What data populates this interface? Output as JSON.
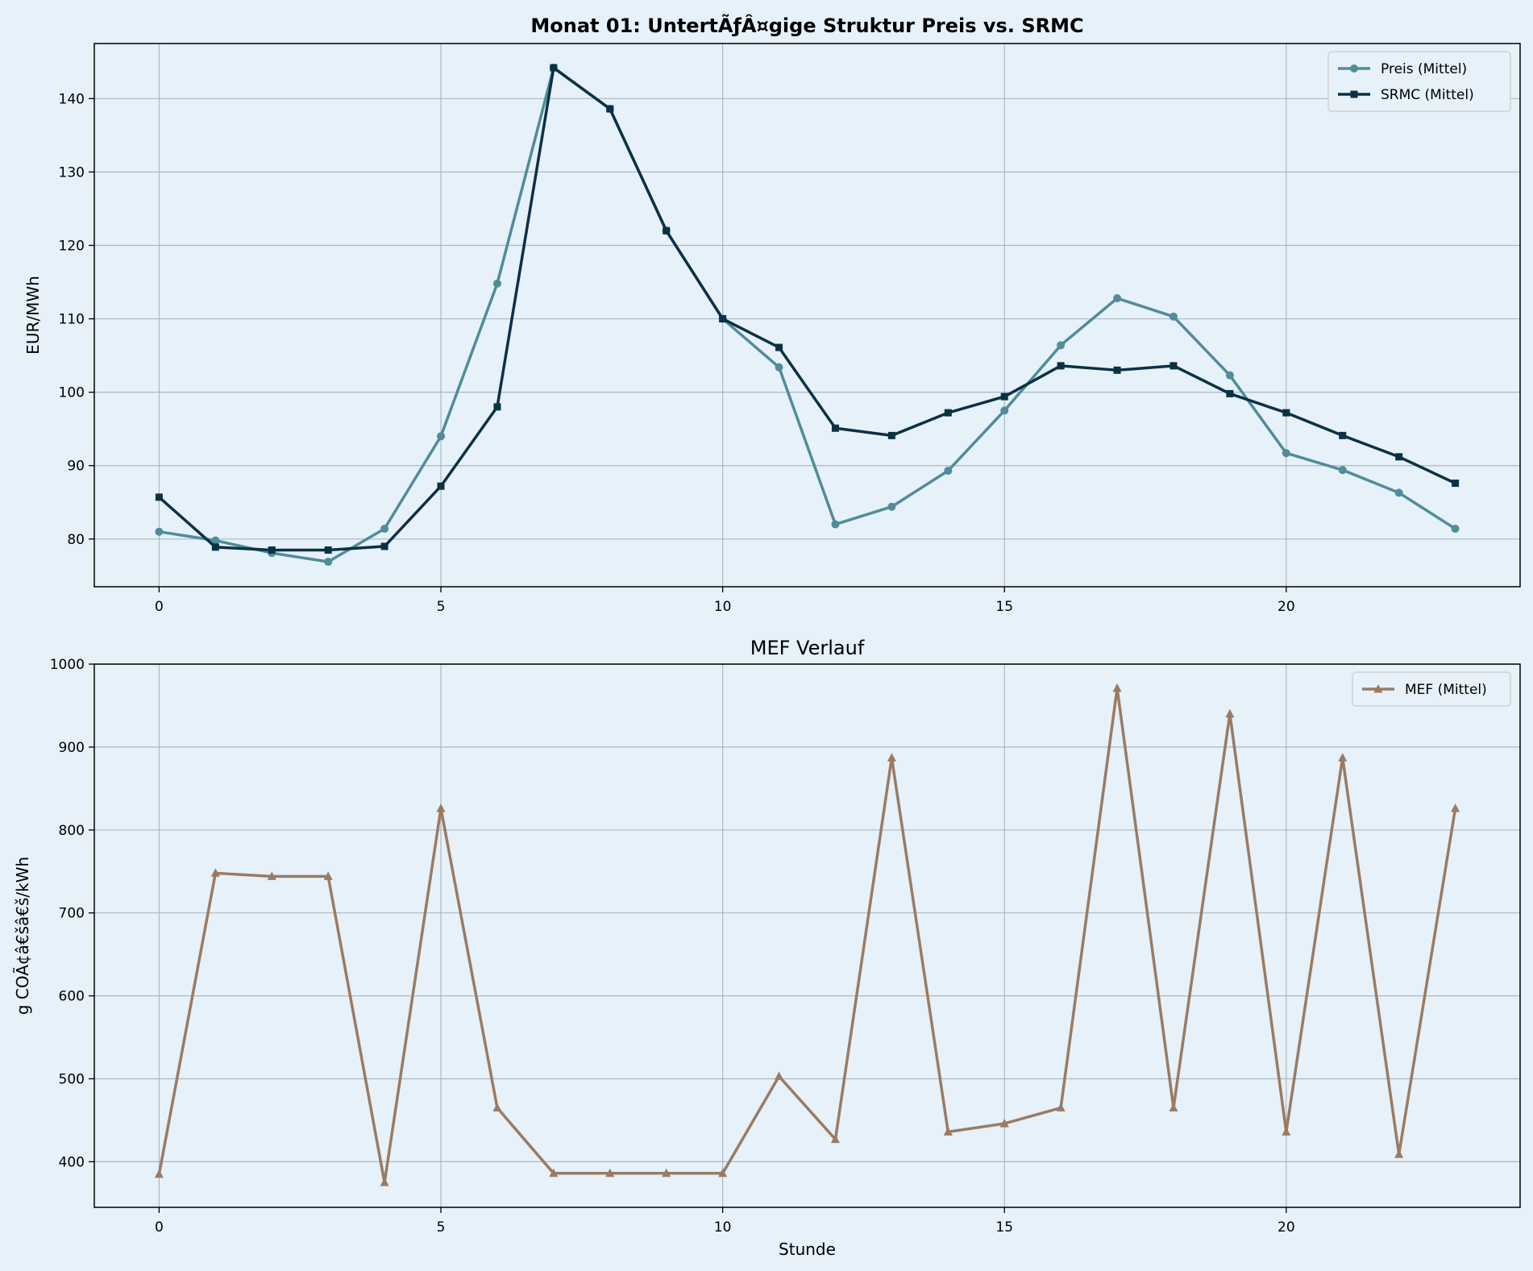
{
  "chart_data": [
    {
      "type": "line",
      "title": "Monat 01: UntertÃƒÂ¤gige Struktur Preis vs. SRMC",
      "title_bold": true,
      "xlabel": "",
      "ylabel": "EUR/MWh",
      "x": [
        0,
        1,
        2,
        3,
        4,
        5,
        6,
        7,
        8,
        9,
        10,
        11,
        12,
        13,
        14,
        15,
        16,
        17,
        18,
        19,
        20,
        21,
        22,
        23
      ],
      "xlim": [
        -1.15,
        24.15
      ],
      "ylim": [
        73.5,
        147.5
      ],
      "xticks": [
        0,
        5,
        10,
        15,
        20
      ],
      "xtick_labels": [
        "0",
        "5",
        "10",
        "15",
        "20"
      ],
      "yticks": [
        80,
        90,
        100,
        110,
        120,
        130,
        140
      ],
      "ytick_labels": [
        "80",
        "90",
        "100",
        "110",
        "120",
        "130",
        "140"
      ],
      "grid": true,
      "legend_position": "top-right",
      "series": [
        {
          "name": "Preis (Mittel)",
          "color": "#508c9b",
          "marker": "circle",
          "values": [
            81.0,
            79.8,
            78.1,
            76.9,
            81.4,
            94.0,
            114.8,
            144.2,
            138.6,
            122.0,
            110.0,
            103.4,
            82.0,
            84.4,
            89.3,
            97.5,
            106.4,
            112.8,
            110.3,
            102.3,
            91.7,
            89.4,
            86.3,
            81.4
          ]
        },
        {
          "name": "SRMC (Mittel)",
          "color": "#0b3144",
          "marker": "square",
          "values": [
            85.7,
            78.9,
            78.5,
            78.5,
            79.0,
            87.2,
            98.0,
            144.2,
            138.6,
            122.0,
            110.0,
            106.1,
            95.1,
            94.1,
            97.2,
            99.4,
            103.6,
            103.0,
            103.6,
            99.8,
            97.2,
            94.1,
            91.2,
            87.6
          ]
        }
      ]
    },
    {
      "type": "line",
      "title": "MEF Verlauf",
      "title_bold": false,
      "xlabel": "Stunde",
      "ylabel": "g COÃ¢â€šâ€š/kWh",
      "x": [
        0,
        1,
        2,
        3,
        4,
        5,
        6,
        7,
        8,
        9,
        10,
        11,
        12,
        13,
        14,
        15,
        16,
        17,
        18,
        19,
        20,
        21,
        22,
        23
      ],
      "xlim": [
        -1.15,
        24.15
      ],
      "ylim": [
        345,
        1000
      ],
      "xticks": [
        0,
        5,
        10,
        15,
        20
      ],
      "xtick_labels": [
        "0",
        "5",
        "10",
        "15",
        "20"
      ],
      "yticks": [
        400,
        500,
        600,
        700,
        800,
        900,
        1000
      ],
      "ytick_labels": [
        "400",
        "500",
        "600",
        "700",
        "800",
        "900",
        "1000"
      ],
      "grid": true,
      "legend_position": "top-right",
      "series": [
        {
          "name": "MEF (Mittel)",
          "color": "#9a7b62",
          "marker": "triangle",
          "values": [
            385,
            748,
            744,
            744,
            375,
            826,
            465,
            386,
            386,
            386,
            386,
            503,
            427,
            887,
            436,
            446,
            465,
            971,
            465,
            940,
            436,
            887,
            409,
            826
          ]
        }
      ]
    }
  ]
}
